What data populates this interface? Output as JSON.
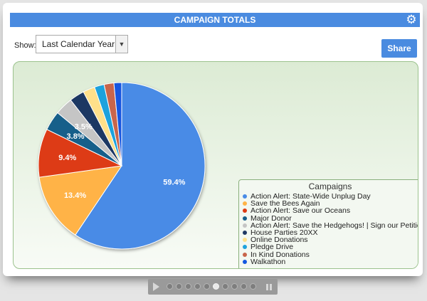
{
  "header": {
    "title": "CAMPAIGN TOTALS",
    "settings_icon": "gear-icon"
  },
  "filter": {
    "label": "Show:",
    "selected": "Last Calendar Year"
  },
  "share_label": "Share",
  "chart_data": {
    "type": "pie",
    "title": "",
    "legend_title": "Campaigns",
    "legend_position": "right",
    "series": [
      {
        "name": "Action Alert: State-Wide Unplug Day",
        "value": 59.4,
        "label": "59.4%",
        "color": "#4a8be6"
      },
      {
        "name": "Save the Bees Again",
        "value": 13.4,
        "label": "13.4%",
        "color": "#ffb347"
      },
      {
        "name": "Action Alert: Save our Oceans",
        "value": 9.4,
        "label": "9.4%",
        "color": "#dd3b13"
      },
      {
        "name": "Major Donor",
        "value": 3.8,
        "label": "3.8%",
        "color": "#185f8a"
      },
      {
        "name": "Action Alert: Save the Hedgehogs! | Sign our Petition",
        "value": 3.5,
        "label": "3.5%",
        "color": "#c5c5c5"
      },
      {
        "name": "House Parties 20XX",
        "value": 2.9,
        "label": "",
        "color": "#1f3864"
      },
      {
        "name": "Online Donations",
        "value": 2.3,
        "label": "",
        "color": "#ffe08a"
      },
      {
        "name": "Pledge Drive",
        "value": 1.9,
        "label": "",
        "color": "#1fa2dd"
      },
      {
        "name": "In Kind Donations",
        "value": 1.9,
        "label": "",
        "color": "#c8654b"
      },
      {
        "name": "Walkathon",
        "value": 1.5,
        "label": "",
        "color": "#1257e0"
      }
    ]
  },
  "pager": {
    "pages": 10,
    "active_index": 5,
    "play_icon": "play-icon",
    "pause_icon": "pause-icon"
  }
}
